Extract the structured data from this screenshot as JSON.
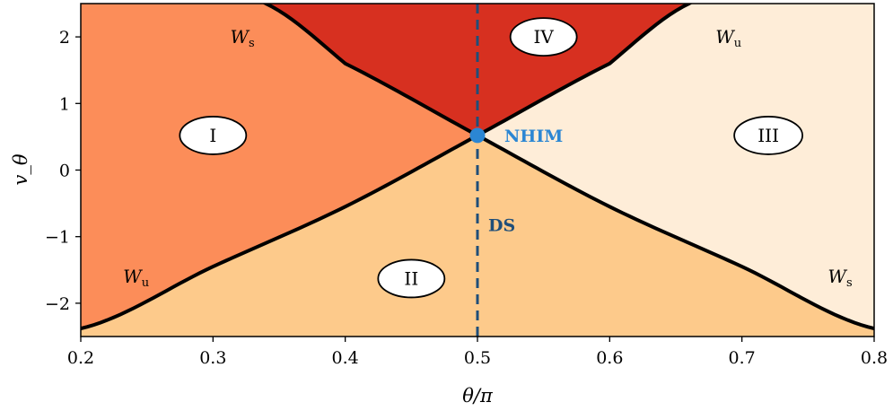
{
  "chart_data": {
    "type": "area",
    "xlabel": "θ/π",
    "ylabel": "v_θ",
    "xlim": [
      0.2,
      0.8
    ],
    "ylim": [
      -2.5,
      2.5
    ],
    "xticks": [
      {
        "value": 0.2,
        "label": "0.2"
      },
      {
        "value": 0.3,
        "label": "0.3"
      },
      {
        "value": 0.4,
        "label": "0.4"
      },
      {
        "value": 0.5,
        "label": "0.5"
      },
      {
        "value": 0.6,
        "label": "0.6"
      },
      {
        "value": 0.7,
        "label": "0.7"
      },
      {
        "value": 0.8,
        "label": "0.8"
      }
    ],
    "yticks": [
      {
        "value": 2,
        "label": "2"
      },
      {
        "value": 1,
        "label": "1"
      },
      {
        "value": 0,
        "label": "0"
      },
      {
        "value": -1,
        "label": "−1"
      },
      {
        "value": -2,
        "label": "−2"
      }
    ],
    "grid": false,
    "nhim_point": {
      "x": 0.5,
      "y": 0.52,
      "label": "NHIM"
    },
    "dividing_surface": {
      "x": 0.5,
      "label": "DS"
    },
    "manifold_branches": {
      "stable_x": [
        0.2,
        0.3,
        0.34,
        0.4,
        0.5,
        0.6,
        0.7,
        0.8
      ],
      "stable_y": [
        3.6,
        2.72,
        2.5,
        1.6,
        0.52,
        -0.55,
        -1.45,
        -2.38
      ],
      "unstable_x": [
        0.2,
        0.3,
        0.4,
        0.5,
        0.6,
        0.66,
        0.7,
        0.8
      ],
      "unstable_y": [
        -2.38,
        -1.45,
        -0.55,
        0.52,
        1.6,
        2.5,
        2.72,
        3.6
      ]
    },
    "manifold_labels": [
      {
        "main": "W",
        "sub": "s",
        "x": 0.313,
        "y": 2.0
      },
      {
        "main": "W",
        "sub": "u",
        "x": 0.68,
        "y": 2.0
      },
      {
        "main": "W",
        "sub": "u",
        "x": 0.232,
        "y": -1.6
      },
      {
        "main": "W",
        "sub": "s",
        "x": 0.765,
        "y": -1.6
      }
    ],
    "regions": [
      {
        "label": "I",
        "x": 0.3,
        "y": 0.52,
        "color": "#fc8d59"
      },
      {
        "label": "II",
        "x": 0.45,
        "y": -1.63,
        "color": "#fdca8b"
      },
      {
        "label": "III",
        "x": 0.72,
        "y": 0.52,
        "color": "#feedd8"
      },
      {
        "label": "IV",
        "x": 0.55,
        "y": 2.0,
        "color": "#d73020"
      }
    ],
    "colors": {
      "manifold": "#000000",
      "nhim": "#2b86d3",
      "ds": "#1f4e79",
      "nhim_label": "#2b86d3",
      "ds_label": "#1f4e79"
    }
  }
}
